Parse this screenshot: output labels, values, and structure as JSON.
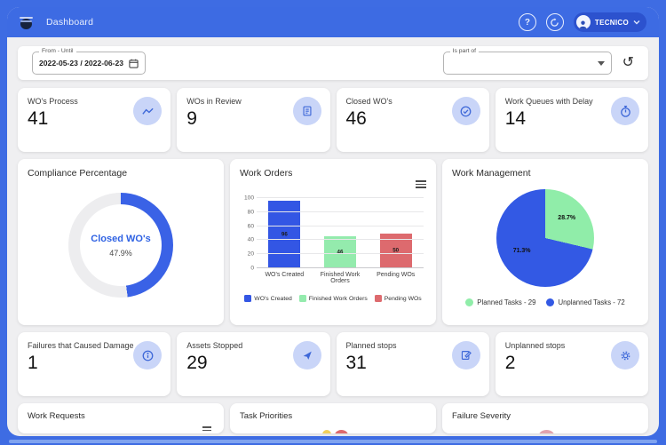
{
  "header": {
    "title": "Dashboard",
    "help_label": "?",
    "user": "TECNICO"
  },
  "filters": {
    "date_label": "From - Until",
    "date_value": "2022-05-23 / 2022-06-23",
    "part_of_label": "Is part of",
    "part_of_value": ""
  },
  "kpis_row1": [
    {
      "label": "WO's Process",
      "value": "41",
      "icon": "trend-line-icon"
    },
    {
      "label": "WOs in Review",
      "value": "9",
      "icon": "clipboard-icon"
    },
    {
      "label": "Closed WO's",
      "value": "46",
      "icon": "check-circle-icon"
    },
    {
      "label": "Work Queues with Delay",
      "value": "14",
      "icon": "timer-icon"
    }
  ],
  "kpis_row2": [
    {
      "label": "Failures that Caused Damage",
      "value": "1",
      "icon": "info-circle-icon"
    },
    {
      "label": "Assets Stopped",
      "value": "29",
      "icon": "navigation-icon"
    },
    {
      "label": "Planned stops",
      "value": "31",
      "icon": "note-edit-icon"
    },
    {
      "label": "Unplanned stops",
      "value": "2",
      "icon": "gear-icon"
    }
  ],
  "bottom_cards": [
    {
      "title": "Work Requests"
    },
    {
      "title": "Task Priorities"
    },
    {
      "title": "Failure Severity"
    }
  ],
  "colors": {
    "header_blue": "#3D6BE3",
    "icon_circle": "#C9D5F8",
    "icon_glyph": "#3E68D8"
  },
  "chart_data": [
    {
      "type": "donut",
      "title": "Compliance Percentage",
      "center_label": "Closed WO's",
      "center_value": "47.9%",
      "value_pct": 47.9,
      "color": "#3A62E6",
      "track_color": "#EDEDEF"
    },
    {
      "type": "bar",
      "title": "Work Orders",
      "categories": [
        "WO's Created",
        "Finished Work Orders",
        "Pending WOs"
      ],
      "values": [
        96,
        46,
        50
      ],
      "colors": [
        "#3356E4",
        "#94EBAD",
        "#DD6A6E"
      ],
      "ylim": [
        0,
        100
      ],
      "yticks": [
        0,
        20,
        40,
        60,
        80,
        100
      ],
      "legend": [
        "WO's Created",
        "Finished Work Orders",
        "Pending WOs"
      ],
      "legend_position": "bottom",
      "grid": true
    },
    {
      "type": "pie",
      "title": "Work Management",
      "slices": [
        {
          "label": "Planned Tasks - 29",
          "value": 29,
          "pct": "28.7%",
          "pct_num": 28.7,
          "color": "#90EDA9"
        },
        {
          "label": "Unplanned Tasks - 72",
          "value": 72,
          "pct": "71.3%",
          "pct_num": 71.3,
          "color": "#3359E4"
        }
      ],
      "legend_position": "bottom"
    }
  ]
}
